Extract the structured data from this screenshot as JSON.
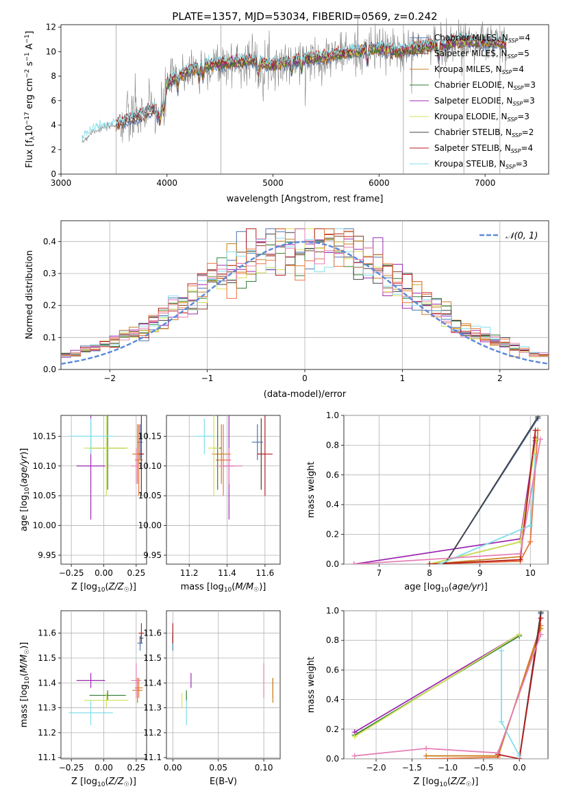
{
  "colors": {
    "Chabrier MILES": "#4c72b0",
    "Salpeter MILES": "#7a3f1e",
    "Kroupa MILES": "#c8801e",
    "Chabrier ELODIE": "#2e7d32",
    "Salpeter ELODIE": "#9c27b0",
    "Kroupa ELODIE": "#d4e157",
    "Chabrier STELIB": "#424242",
    "Salpeter STELIB": "#b71c1c",
    "Kroupa STELIB": "#80deea",
    "orange": "#e8743b",
    "pink": "#e57fb5",
    "data": "#7f7f7f",
    "normal": "#5b8bd8"
  },
  "chart_data": [
    {
      "type": "line",
      "title": "PLATE=1357, MJD=53034, FIBERID=0569, z=0.242",
      "xlabel": "wavelength [Angstrom, rest frame]",
      "ylabel": "Flux [f_λ 10^-17 erg cm^-2 s^-1 A^-1]",
      "xlim": [
        3000,
        7600
      ],
      "ylim": [
        0,
        12.2
      ],
      "xticks": [
        "3000",
        "4000",
        "5000",
        "6000",
        "7000"
      ],
      "yticks": [
        "0",
        "2",
        "4",
        "6",
        "8",
        "10",
        "12"
      ],
      "legend_placement": "right",
      "legend": [
        {
          "label": "Chabrier MILES, N",
          "sub": "SSP",
          "tail": "=4"
        },
        {
          "label": "Salpeter MILES, N",
          "sub": "SSP",
          "tail": "=5"
        },
        {
          "label": "Kroupa MILES, N",
          "sub": "SSP",
          "tail": "=4"
        },
        {
          "label": "Chabrier ELODIE, N",
          "sub": "SSP",
          "tail": "=3"
        },
        {
          "label": "Salpeter ELODIE, N",
          "sub": "SSP",
          "tail": "=3"
        },
        {
          "label": "Kroupa ELODIE, N",
          "sub": "SSP",
          "tail": "=3"
        },
        {
          "label": "Chabrier STELIB, N",
          "sub": "SSP",
          "tail": "=2"
        },
        {
          "label": "Salpeter STELIB, N",
          "sub": "SSP",
          "tail": "=4"
        },
        {
          "label": "Kroupa STELIB, N",
          "sub": "SSP",
          "tail": "=3"
        }
      ],
      "continuum": {
        "x": [
          3200,
          3300,
          3500,
          3700,
          3900,
          4000,
          4100,
          4300,
          4500,
          4800,
          5000,
          5200,
          5500,
          5700,
          6000,
          6200,
          6400,
          6600,
          6800,
          7000,
          7200
        ],
        "y": [
          2.6,
          3.5,
          4.0,
          4.6,
          5.4,
          7.4,
          8.0,
          8.8,
          9.0,
          9.3,
          8.9,
          9.3,
          9.6,
          9.9,
          10.3,
          10.0,
          10.4,
          10.6,
          10.9,
          10.8,
          10.6
        ]
      }
    },
    {
      "type": "histogram",
      "xlabel": "(data-model)/error",
      "ylabel": "Normed distribution",
      "xlim": [
        -2.5,
        2.5
      ],
      "ylim": [
        0,
        0.465
      ],
      "xticks": [
        "−2",
        "−1",
        "0",
        "1",
        "2"
      ],
      "yticks": [
        "0.0",
        "0.1",
        "0.2",
        "0.3",
        "0.4"
      ],
      "legend": "𝒩(0, 1)",
      "legend_placement": "top-right",
      "bin_width": 0.1,
      "normal_curve": {
        "mean": 0,
        "sigma": 1
      }
    },
    {
      "type": "scatter",
      "xlabel": "Z [log₁₀(Z/Z☉)]",
      "ylabel": "age  [log₁₀(age/yr)]",
      "xlim": [
        -0.33,
        0.33
      ],
      "ylim": [
        9.935,
        10.185
      ],
      "xticks": [
        -0.25,
        0,
        0.25
      ],
      "xtick_labels": [
        "−0.25",
        "0.00",
        "0.25"
      ],
      "yticks": [
        9.95,
        10.0,
        10.05,
        10.1,
        10.15
      ],
      "ytick_labels": [
        "9.95",
        "10.00",
        "10.05",
        "10.10",
        "10.15"
      ]
    },
    {
      "type": "scatter",
      "xlabel": "mass [log₁₀(M/M☉)]",
      "xlim": [
        11.08,
        11.68
      ],
      "ylim": [
        9.935,
        10.185
      ],
      "xticks": [
        11.2,
        11.4,
        11.6
      ],
      "xtick_labels": [
        "11.2",
        "11.4",
        "11.6"
      ],
      "yticks": [
        9.95,
        10.0,
        10.05,
        10.1,
        10.15
      ],
      "ytick_labels": [
        "9.95",
        "10.00",
        "10.05",
        "10.10",
        "10.15"
      ]
    },
    {
      "type": "line",
      "xlabel": "age  [log₁₀(age/yr)]",
      "ylabel": "mass weight",
      "xlim": [
        6.3,
        10.35
      ],
      "ylim": [
        0,
        1.0
      ],
      "xticks": [
        7,
        8,
        9,
        10
      ],
      "xtick_labels": [
        "7",
        "8",
        "9",
        "10"
      ],
      "yticks": [
        0,
        0.2,
        0.4,
        0.6,
        0.8,
        1.0
      ],
      "ytick_labels": [
        "0.0",
        "0.2",
        "0.4",
        "0.6",
        "0.8",
        "1.0"
      ]
    },
    {
      "type": "scatter",
      "xlabel": "Z [log₁₀(Z/Z☉)]",
      "ylabel": "mass [log₁₀(M/M☉)]",
      "xlim": [
        -0.33,
        0.33
      ],
      "ylim": [
        11.095,
        11.69
      ],
      "xticks": [
        -0.25,
        0,
        0.25
      ],
      "xtick_labels": [
        "−0.25",
        "0.00",
        "0.25"
      ],
      "yticks": [
        11.1,
        11.2,
        11.3,
        11.4,
        11.5,
        11.6
      ],
      "ytick_labels": [
        "11.1",
        "11.2",
        "11.3",
        "11.4",
        "11.5",
        "11.6"
      ]
    },
    {
      "type": "scatter",
      "xlabel": "E(B-V)",
      "xlim": [
        -0.007,
        0.118
      ],
      "ylim": [
        11.095,
        11.69
      ],
      "xticks": [
        0,
        0.05,
        0.1
      ],
      "xtick_labels": [
        "0.00",
        "0.05",
        "0.10"
      ],
      "yticks": [
        11.1,
        11.2,
        11.3,
        11.4,
        11.5,
        11.6
      ],
      "ytick_labels": [
        "11.1",
        "11.2",
        "11.3",
        "11.4",
        "11.5",
        "11.6"
      ]
    },
    {
      "type": "line",
      "xlabel": "Z [log₁₀(Z/Z☉)]",
      "ylabel": "mass weight",
      "xlim": [
        -2.45,
        0.4
      ],
      "ylim": [
        0,
        1.0
      ],
      "xticks": [
        -2,
        -1.5,
        -1,
        -0.5,
        0
      ],
      "xtick_labels": [
        "−2.0",
        "−1.5",
        "−1.0",
        "−0.5",
        "0.0"
      ],
      "yticks": [
        0,
        0.2,
        0.4,
        0.6,
        0.8,
        1.0
      ],
      "ytick_labels": [
        "0.0",
        "0.2",
        "0.4",
        "0.6",
        "0.8",
        "1.0"
      ]
    }
  ],
  "models": [
    {
      "name": "Chabrier MILES",
      "c": "Chabrier MILES",
      "Z": 0.28,
      "dZ": 0.02,
      "age": 10.14,
      "dage": 0.03,
      "mass": 11.56,
      "dmass": 0.03,
      "ebv": 0.0,
      "dage2": 0.02,
      "cum_age": [
        [
          8.3,
          0.0
        ],
        [
          10.15,
          0.98
        ]
      ],
      "cum_Z": [
        [
          0.0,
          0.0
        ],
        [
          0.3,
          0.98
        ]
      ]
    },
    {
      "name": "Salpeter MILES",
      "c": "orange",
      "Z": 0.27,
      "dZ": 0.03,
      "age": 10.11,
      "dage": 0.06,
      "mass": 11.38,
      "dmass": 0.04,
      "ebv": 0.11,
      "dage2": 0.02,
      "cum_age": [
        [
          8.0,
          0.0
        ],
        [
          9.8,
          0.02
        ],
        [
          10.0,
          0.15
        ],
        [
          10.15,
          0.9
        ]
      ],
      "cum_Z": [
        [
          -1.3,
          0.0
        ],
        [
          -0.3,
          0.01
        ],
        [
          0.3,
          0.9
        ]
      ]
    },
    {
      "name": "Kroupa MILES",
      "c": "Kroupa MILES",
      "Z": 0.26,
      "dZ": 0.04,
      "age": 10.12,
      "dage": 0.05,
      "mass": 11.37,
      "dmass": 0.05,
      "ebv": 0.11,
      "dage2": 0.02,
      "cum_age": [
        [
          8.0,
          0.0
        ],
        [
          9.8,
          0.05
        ],
        [
          10.1,
          0.85
        ]
      ],
      "cum_Z": [
        [
          -1.3,
          0.02
        ],
        [
          -0.3,
          0.02
        ],
        [
          0.3,
          0.88
        ]
      ]
    },
    {
      "name": "Chabrier ELODIE",
      "c": "Chabrier ELODIE",
      "Z": 0.03,
      "dZ": 0.14,
      "age": 10.13,
      "dage": 0.07,
      "mass": 11.35,
      "dmass": 0.02,
      "ebv": 0.015,
      "dage2": 0.02,
      "cum_age": [
        [
          8.0,
          0.0
        ],
        [
          9.8,
          0.15
        ],
        [
          10.1,
          0.83
        ]
      ],
      "cum_Z": [
        [
          -2.3,
          0.16
        ],
        [
          0.0,
          0.83
        ]
      ]
    },
    {
      "name": "Salpeter ELODIE",
      "c": "Salpeter ELODIE",
      "Z": -0.1,
      "dZ": 0.11,
      "age": 10.1,
      "dage": 0.09,
      "mass": 11.41,
      "dmass": 0.03,
      "ebv": 0.02,
      "dage2": 0.03,
      "cum_age": [
        [
          6.5,
          0.0
        ],
        [
          9.8,
          0.17
        ],
        [
          10.1,
          0.85
        ]
      ],
      "cum_Z": [
        [
          -2.3,
          0.18
        ],
        [
          0.0,
          0.84
        ]
      ]
    },
    {
      "name": "Kroupa ELODIE",
      "c": "Kroupa ELODIE",
      "Z": 0.02,
      "dZ": 0.17,
      "age": 10.13,
      "dage": 0.08,
      "mass": 11.33,
      "dmass": 0.03,
      "ebv": 0.01,
      "dage2": 0.02,
      "cum_age": [
        [
          8.0,
          0.0
        ],
        [
          9.8,
          0.15
        ],
        [
          10.12,
          0.84
        ]
      ],
      "cum_Z": [
        [
          -2.3,
          0.15
        ],
        [
          0.0,
          0.84
        ]
      ]
    },
    {
      "name": "Chabrier STELIB",
      "c": "Chabrier STELIB",
      "Z": 0.29,
      "dZ": 0.015,
      "age": 10.12,
      "dage": 0.06,
      "mass": 11.58,
      "dmass": 0.02,
      "ebv": 0.0,
      "dage2": 0.03,
      "cum_age": [
        [
          8.3,
          0.0
        ],
        [
          10.15,
          0.99
        ]
      ],
      "cum_Z": [
        [
          0.0,
          0.0
        ],
        [
          0.3,
          0.99
        ]
      ]
    },
    {
      "name": "Salpeter STELIB",
      "c": "Salpeter STELIB",
      "Z": 0.29,
      "dZ": 0.02,
      "age": 10.12,
      "dage": 0.07,
      "mass": 11.6,
      "dmass": 0.04,
      "ebv": 0.0,
      "dage2": 0.03,
      "cum_age": [
        [
          8.0,
          0.0
        ],
        [
          9.8,
          0.03
        ],
        [
          10.1,
          0.9
        ]
      ],
      "cum_Z": [
        [
          -0.3,
          0.03
        ],
        [
          0.0,
          0.0
        ],
        [
          0.3,
          0.95
        ]
      ]
    },
    {
      "name": "Kroupa STELIB",
      "c": "Kroupa STELIB",
      "Z": -0.1,
      "dZ": 0.17,
      "age": 10.15,
      "dage": 0.03,
      "mass": 11.28,
      "dmass": 0.05,
      "ebv": 0.015,
      "dage2": 0.02,
      "cum_age": [
        [
          8.2,
          0.0
        ],
        [
          10.0,
          0.26
        ],
        [
          10.1,
          0.73
        ]
      ],
      "cum_Z": [
        [
          0.0,
          0.02
        ],
        [
          -0.25,
          0.25
        ],
        [
          -0.25,
          0.73
        ]
      ]
    },
    {
      "name": "pink",
      "c": "pink",
      "Z": 0.25,
      "dZ": 0.04,
      "age": 10.1,
      "dage": 0.03,
      "mass": 11.41,
      "dmass": 0.07,
      "ebv": 0.1,
      "dage2": 0.02,
      "cum_age": [
        [
          6.5,
          0.0
        ],
        [
          9.8,
          0.07
        ],
        [
          10.2,
          0.84
        ]
      ],
      "cum_Z": [
        [
          -2.3,
          0.02
        ],
        [
          -1.3,
          0.07
        ],
        [
          -0.3,
          0.04
        ],
        [
          0.3,
          0.84
        ]
      ]
    }
  ]
}
